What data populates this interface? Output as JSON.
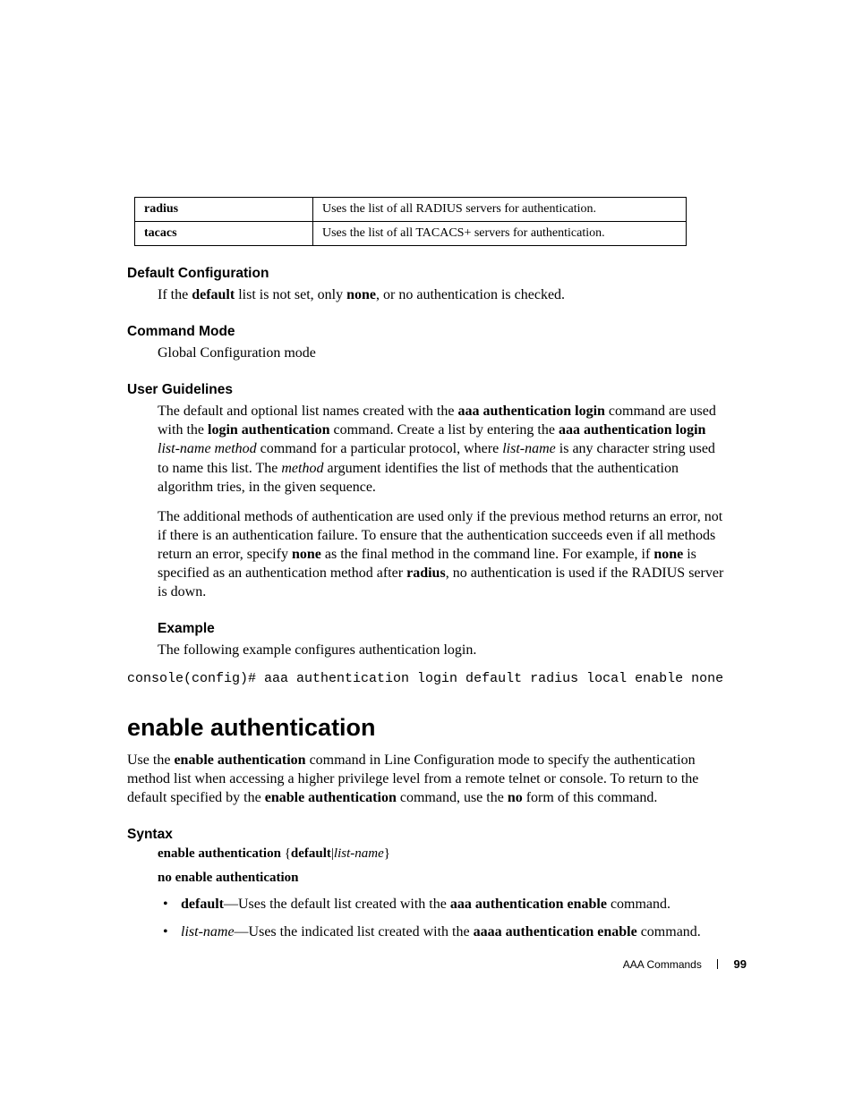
{
  "table": {
    "rows": [
      {
        "key": "radius",
        "desc": "Uses the list of all RADIUS servers for authentication."
      },
      {
        "key": "tacacs",
        "desc": "Uses the list of all TACACS+ servers for authentication."
      }
    ]
  },
  "sections": {
    "defcfg": {
      "title": "Default Configuration",
      "pre": "If the ",
      "b1": "default",
      "mid": " list is not set, only ",
      "b2": "none",
      "post": ", or no authentication is checked."
    },
    "cmdmode": {
      "title": "Command Mode",
      "text": "Global Configuration mode"
    },
    "guidelines": {
      "title": "User Guidelines",
      "p1_a": "The default and optional list names created with the ",
      "p1_b1": "aaa authentication login",
      "p1_b": " command are used with the ",
      "p1_b2": "login authentication",
      "p1_c": " command. Create a list by entering the ",
      "p1_b3": "aaa authentication login",
      "p1_d": " ",
      "p1_i1": "list-name method",
      "p1_e": " command for a particular protocol, where ",
      "p1_i2": "list-name",
      "p1_f": " is any character string used to name this list. The ",
      "p1_i3": "method",
      "p1_g": " argument identifies the list of methods that the authentication algorithm tries, in the given sequence.",
      "p2_a": "The additional methods of authentication are used only if the previous method returns an error, not if there is an authentication failure. To ensure that the authentication succeeds even if all methods return an error, specify ",
      "p2_b1": "none",
      "p2_b": " as the final method in the command line. For example, if ",
      "p2_b2": "none",
      "p2_c": " is specified as an authentication method after ",
      "p2_b3": "radius",
      "p2_d": ", no authentication is used if the RADIUS server is down."
    },
    "example": {
      "title": "Example",
      "text": "The following example configures authentication login.",
      "code": "console(config)# aaa authentication login default radius local enable none"
    },
    "enableauth": {
      "title": "enable authentication",
      "p_a": "Use the ",
      "p_b1": "enable authentication",
      "p_b": " command in Line Configuration mode to specify the authentication method list when accessing a higher privilege level from a remote telnet or console. To return to the default specified by the ",
      "p_b2": "enable authentication",
      "p_c": " command, use the ",
      "p_b3": "no",
      "p_d": " form of this command."
    },
    "syntax": {
      "title": "Syntax",
      "l1_b1": "enable authentication",
      "l1_a": " {",
      "l1_b2": "default",
      "l1_b": "|",
      "l1_i1": "list-name",
      "l1_c": "}",
      "l2": "no enable authentication",
      "bul1_b": "default",
      "bul1_t": "—Uses the default list created with the ",
      "bul1_b2": "aaa authentication enable",
      "bul1_t2": " command.",
      "bul2_i": "list-name",
      "bul2_t": "—Uses the indicated list created with the ",
      "bul2_b": "aaaa authentication enable",
      "bul2_t2": " command."
    }
  },
  "footer": {
    "section": "AAA Commands",
    "page": "99"
  }
}
